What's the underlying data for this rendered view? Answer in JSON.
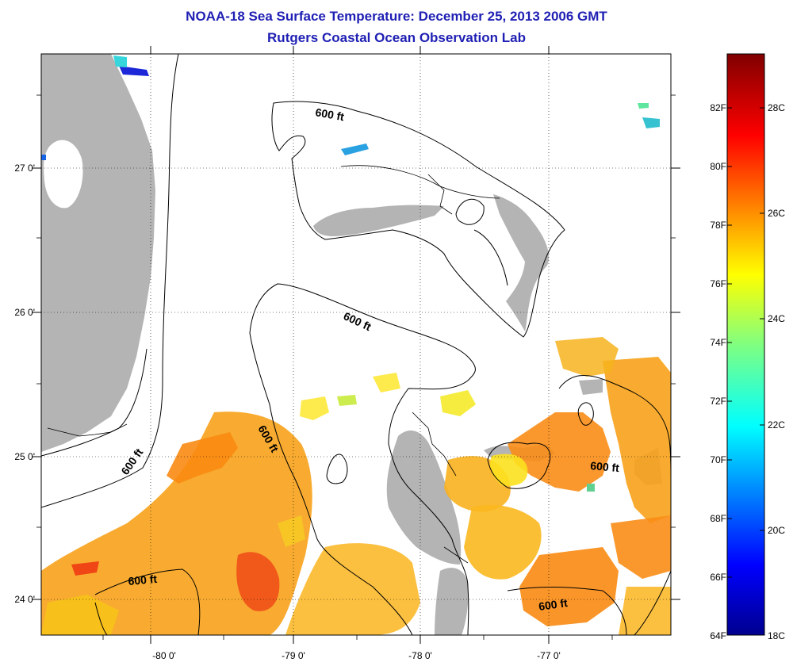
{
  "title": "NOAA-18 Sea Surface Temperature:  December 25, 2013 2006 GMT",
  "subtitle": "Rutgers Coastal Ocean Observation Lab",
  "colors": {
    "title": "#1f1fb4",
    "land": "#b4b4b4",
    "contour": "#000000",
    "cloud_mask": "#ffffff"
  },
  "map": {
    "lat_labels": [
      "27 0'",
      "26 0'",
      "25 0'",
      "24 0'"
    ],
    "lon_labels": [
      "-80 0'",
      "-79 0'",
      "-78 0'",
      "-77 0'"
    ],
    "contour_labels": [
      "600 ft",
      "600 ft",
      "600 ft",
      "600 ft",
      "600 ft",
      "600 ft"
    ]
  },
  "colorbar": {
    "f_labels": [
      "82F",
      "80F",
      "78F",
      "76F",
      "74F",
      "72F",
      "70F",
      "68F",
      "66F",
      "64F"
    ],
    "c_labels": [
      "28C",
      "26C",
      "24C",
      "22C",
      "20C",
      "18C"
    ]
  }
}
